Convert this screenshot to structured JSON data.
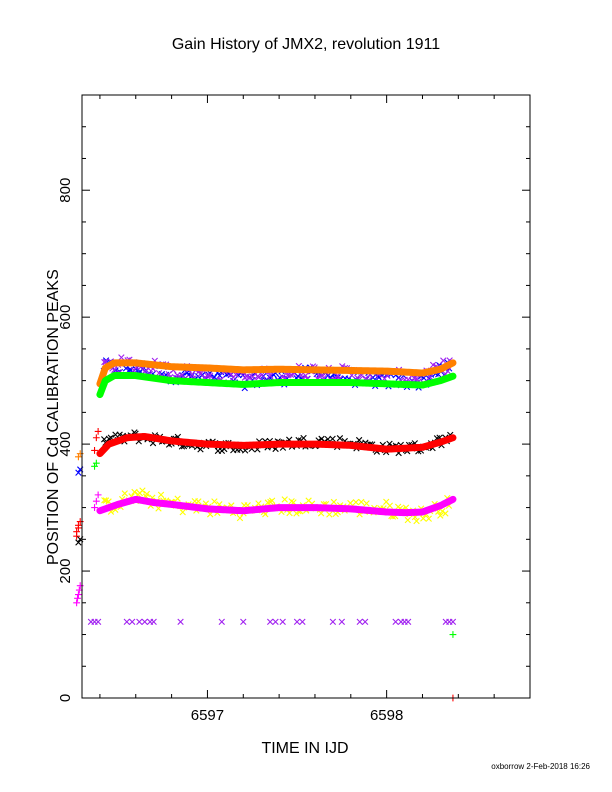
{
  "title": "Gain History of JMX2, revolution 1911",
  "credit": "oxborrow  2-Feb-2018 16:26",
  "chart_data": {
    "type": "scatter",
    "title": "Gain History of JMX2, revolution 1911",
    "xlabel": "TIME IN IJD",
    "ylabel": "POSITION OF Cd CALIBRATION PEAKS",
    "xlim": [
      6596.3,
      6598.8
    ],
    "ylim": [
      0,
      950
    ],
    "x_ticks": [
      6597,
      6598
    ],
    "y_ticks": [
      0,
      200,
      400,
      600,
      800
    ],
    "grid": false,
    "colors": {
      "black": "#000000",
      "red": "#ff0000",
      "blue": "#0000ff",
      "purple": "#a020f0",
      "orange": "#ff8000",
      "green": "#00ff00",
      "yellow": "#ffff00",
      "magenta": "#ff00ff"
    },
    "scatter_bands": [
      {
        "color": "blue",
        "marker": "x",
        "spread": 12,
        "x": [
          6596.42,
          6596.6,
          6596.8,
          6597.0,
          6597.2,
          6597.4,
          6597.6,
          6597.8,
          6598.0,
          6598.2,
          6598.35
        ],
        "y": [
          520,
          520,
          510,
          505,
          500,
          505,
          510,
          505,
          500,
          500,
          520
        ]
      },
      {
        "color": "purple",
        "marker": "x",
        "spread": 12,
        "x": [
          6596.42,
          6596.6,
          6596.8,
          6597.0,
          6597.2,
          6597.4,
          6597.6,
          6597.8,
          6598.0,
          6598.2,
          6598.35
        ],
        "y": [
          525,
          525,
          515,
          510,
          505,
          510,
          515,
          510,
          505,
          505,
          525
        ]
      },
      {
        "color": "black",
        "marker": "x",
        "spread": 8,
        "x": [
          6596.42,
          6596.6,
          6596.8,
          6597.0,
          6597.2,
          6597.4,
          6597.6,
          6597.8,
          6598.0,
          6598.2,
          6598.35
        ],
        "y": [
          405,
          412,
          405,
          398,
          395,
          400,
          405,
          402,
          393,
          395,
          410
        ]
      },
      {
        "color": "yellow",
        "marker": "x",
        "spread": 12,
        "x": [
          6596.42,
          6596.6,
          6596.8,
          6597.0,
          6597.2,
          6597.4,
          6597.6,
          6597.8,
          6598.0,
          6598.2,
          6598.35
        ],
        "y": [
          300,
          318,
          305,
          300,
          295,
          302,
          300,
          300,
          298,
          288,
          305
        ]
      }
    ],
    "series": [
      {
        "color": "orange",
        "x": [
          6596.4,
          6596.43,
          6596.48,
          6596.6,
          6596.8,
          6597.0,
          6597.2,
          6597.4,
          6597.6,
          6597.8,
          6598.0,
          6598.2,
          6598.3,
          6598.37
        ],
        "y": [
          495,
          520,
          528,
          528,
          522,
          520,
          517,
          518,
          517,
          516,
          515,
          512,
          518,
          528
        ]
      },
      {
        "color": "green",
        "x": [
          6596.4,
          6596.43,
          6596.48,
          6596.6,
          6596.8,
          6597.0,
          6597.2,
          6597.4,
          6597.6,
          6597.8,
          6598.0,
          6598.2,
          6598.3,
          6598.37
        ],
        "y": [
          478,
          500,
          508,
          508,
          500,
          497,
          494,
          497,
          497,
          497,
          495,
          493,
          500,
          507
        ]
      },
      {
        "color": "red",
        "x": [
          6596.4,
          6596.45,
          6596.55,
          6596.65,
          6596.8,
          6597.0,
          6597.2,
          6597.4,
          6597.6,
          6597.8,
          6598.0,
          6598.2,
          6598.3,
          6598.37
        ],
        "y": [
          385,
          400,
          410,
          412,
          405,
          400,
          398,
          400,
          400,
          398,
          392,
          395,
          403,
          410
        ]
      },
      {
        "color": "magenta",
        "x": [
          6596.4,
          6596.5,
          6596.6,
          6596.7,
          6596.8,
          6597.0,
          6597.2,
          6597.4,
          6597.6,
          6597.8,
          6598.0,
          6598.1,
          6598.2,
          6598.3,
          6598.37
        ],
        "y": [
          295,
          305,
          313,
          308,
          305,
          298,
          295,
          300,
          300,
          298,
          293,
          292,
          293,
          303,
          313
        ]
      }
    ],
    "early_points": [
      {
        "color": "red",
        "marker": "+",
        "x": [
          6596.27,
          6596.27,
          6596.28,
          6596.28,
          6596.29
        ],
        "y": [
          255,
          262,
          268,
          272,
          278
        ]
      },
      {
        "color": "black",
        "marker": "x",
        "x": [
          6596.28,
          6596.29
        ],
        "y": [
          245,
          250
        ]
      },
      {
        "color": "magenta",
        "marker": "+",
        "x": [
          6596.27,
          6596.275,
          6596.28,
          6596.285,
          6596.29
        ],
        "y": [
          150,
          157,
          163,
          170,
          177
        ]
      },
      {
        "color": "blue",
        "marker": "x",
        "x": [
          6596.28,
          6596.29
        ],
        "y": [
          355,
          360
        ]
      },
      {
        "color": "orange",
        "marker": "+",
        "x": [
          6596.28,
          6596.29
        ],
        "y": [
          380,
          385
        ]
      },
      {
        "color": "red",
        "marker": "+",
        "x": [
          6596.37,
          6596.38,
          6596.39
        ],
        "y": [
          390,
          410,
          420
        ]
      },
      {
        "color": "green",
        "marker": "+",
        "x": [
          6596.37,
          6596.38
        ],
        "y": [
          365,
          370
        ]
      },
      {
        "color": "magenta",
        "marker": "+",
        "x": [
          6596.37,
          6596.38,
          6596.39
        ],
        "y": [
          300,
          310,
          320
        ]
      },
      {
        "color": "green",
        "marker": "+",
        "x": [
          6598.37
        ],
        "y": [
          100
        ]
      },
      {
        "color": "red",
        "marker": "+",
        "x": [
          6598.37
        ],
        "y": [
          0
        ]
      }
    ],
    "baseline_markers": {
      "color": "purple",
      "marker": "x",
      "y": 120,
      "x": [
        6596.35,
        6596.37,
        6596.39,
        6596.55,
        6596.58,
        6596.62,
        6596.65,
        6596.68,
        6596.7,
        6596.85,
        6597.08,
        6597.2,
        6597.35,
        6597.38,
        6597.42,
        6597.5,
        6597.53,
        6597.7,
        6597.75,
        6597.85,
        6597.88,
        6598.05,
        6598.08,
        6598.1,
        6598.12,
        6598.33,
        6598.35,
        6598.37
      ]
    }
  }
}
